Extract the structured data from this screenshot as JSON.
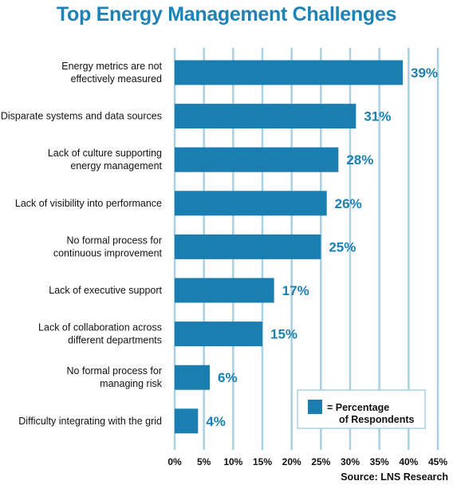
{
  "chart_data": {
    "type": "bar",
    "orientation": "horizontal",
    "title": "Top Energy Management Challenges",
    "categories": [
      [
        "Energy metrics are not",
        "effectively measured"
      ],
      [
        "Disparate systems and data sources"
      ],
      [
        "Lack of culture supporting",
        "energy management"
      ],
      [
        "Lack of visibility into performance"
      ],
      [
        "No formal process for",
        "continuous improvement"
      ],
      [
        "Lack of executive support"
      ],
      [
        "Lack of collaboration across",
        "different departments"
      ],
      [
        "No formal process for",
        "managing risk"
      ],
      [
        "Difficulty integrating with the grid"
      ]
    ],
    "values": [
      39,
      31,
      28,
      26,
      25,
      17,
      15,
      6,
      4
    ],
    "value_labels": [
      "39%",
      "31%",
      "28%",
      "26%",
      "25%",
      "17%",
      "15%",
      "6%",
      "4%"
    ],
    "xlim": [
      0,
      45
    ],
    "x_ticks": [
      "0%",
      "5%",
      "10%",
      "15%",
      "20%",
      "25%",
      "30%",
      "35%",
      "40%",
      "45%"
    ],
    "grid": true,
    "legend": {
      "placement": "bottom-right",
      "lines": [
        "= Percentage",
        "of Respondents"
      ]
    },
    "source": "Source: LNS Research",
    "colors": {
      "bar": "#1a7fb0",
      "grid": "#a9d0e3",
      "title": "#1d82b5",
      "value_label": "#1a80b3"
    }
  }
}
